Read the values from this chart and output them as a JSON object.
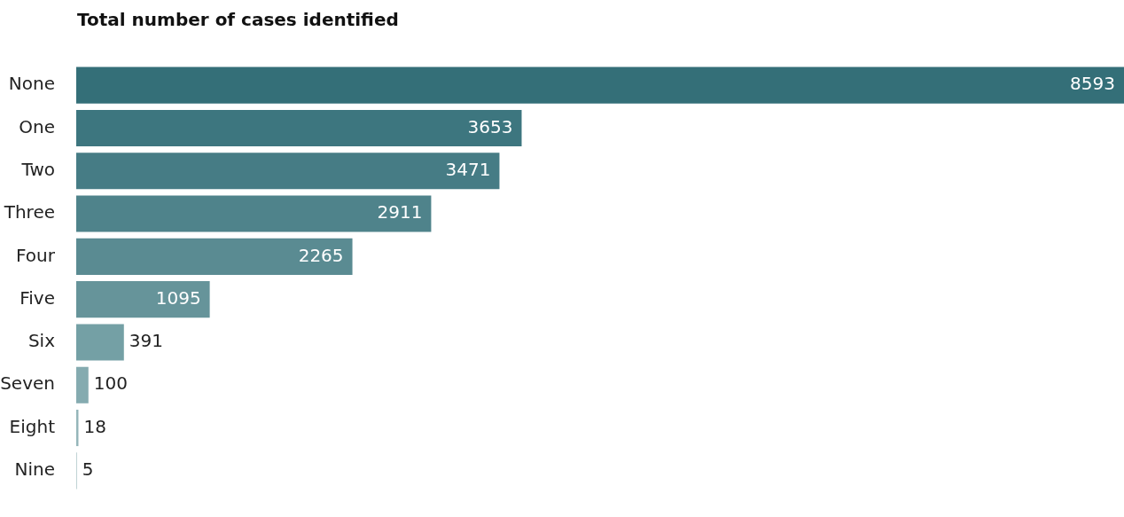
{
  "chart_data": {
    "type": "bar",
    "orientation": "horizontal",
    "title": "Total number of cases identified",
    "categories": [
      "None",
      "One",
      "Two",
      "Three",
      "Four",
      "Five",
      "Six",
      "Seven",
      "Eight",
      "Nine"
    ],
    "values": [
      8593,
      3653,
      3471,
      2911,
      2265,
      1095,
      391,
      100,
      18,
      5
    ],
    "colors": [
      "#346f78",
      "#3d767f",
      "#467c85",
      "#4f838b",
      "#5a8b92",
      "#66949a",
      "#74a0a5",
      "#85abb0",
      "#95b6ba",
      "#a3bfc2"
    ],
    "data_labels": true
  }
}
